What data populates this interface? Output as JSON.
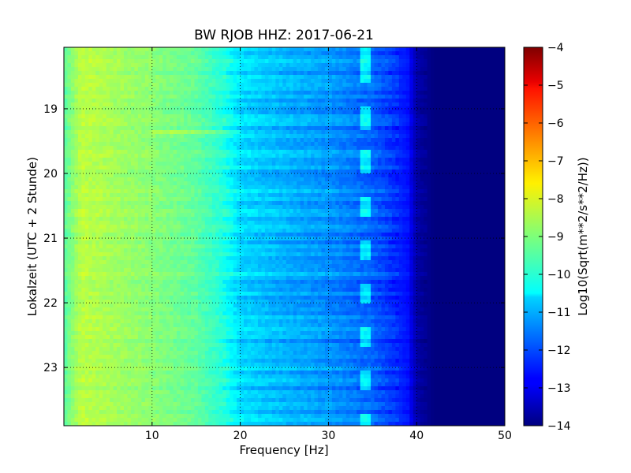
{
  "chart_data": {
    "type": "heatmap",
    "title": "BW RJOB HHZ: 2017-06-21",
    "xlabel": "Frequency [Hz]",
    "ylabel": "Lokalzeit (UTC + 2 Stunde)",
    "xlim": [
      0,
      50
    ],
    "ylim": [
      18.05,
      23.9
    ],
    "y_inverted": true,
    "x_ticks": [
      10,
      20,
      30,
      40,
      50
    ],
    "x_tick_labels": [
      "10",
      "20",
      "30",
      "40",
      "50"
    ],
    "y_ticks": [
      19,
      20,
      21,
      22,
      23
    ],
    "y_tick_labels": [
      "19",
      "20",
      "21",
      "22",
      "23"
    ],
    "grid": true,
    "colormap": "jet",
    "colorbar": {
      "label": "Log10(Sqrt(m**2/s**2/Hz))",
      "min": -14,
      "max": -4,
      "ticks": [
        -4,
        -5,
        -6,
        -7,
        -8,
        -9,
        -10,
        -11,
        -12,
        -13,
        -14
      ],
      "tick_labels": [
        "−4",
        "−5",
        "−6",
        "−7",
        "−8",
        "−9",
        "−10",
        "−11",
        "−12",
        "−13",
        "−14"
      ]
    },
    "spectrum_profile": [
      {
        "freq": 0,
        "value": -9.4
      },
      {
        "freq": 2,
        "value": -8.4
      },
      {
        "freq": 5,
        "value": -8.6
      },
      {
        "freq": 10,
        "value": -8.9
      },
      {
        "freq": 15,
        "value": -9.3
      },
      {
        "freq": 18,
        "value": -9.9
      },
      {
        "freq": 20,
        "value": -10.6
      },
      {
        "freq": 25,
        "value": -11.0
      },
      {
        "freq": 30,
        "value": -11.3
      },
      {
        "freq": 35,
        "value": -11.8
      },
      {
        "freq": 39,
        "value": -12.6
      },
      {
        "freq": 40,
        "value": -13.6
      },
      {
        "freq": 42,
        "value": -14.0
      },
      {
        "freq": 50,
        "value": -14.0
      }
    ]
  }
}
